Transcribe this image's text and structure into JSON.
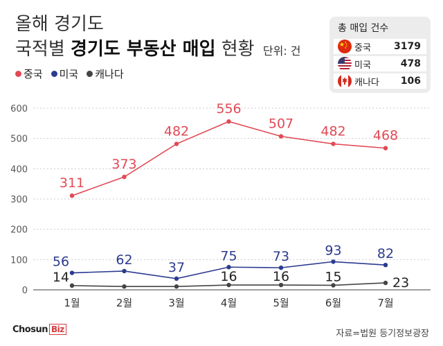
{
  "header": {
    "title_line1": "올해 경기도",
    "title_prefix": "국적별",
    "title_bold": "경기도 부동산 매입",
    "title_suffix": "현황",
    "unit": "단위: 건"
  },
  "summary": {
    "title": "총 매입 건수",
    "rows": [
      {
        "name": "중국",
        "value": "3179",
        "flag": "china-flag-icon"
      },
      {
        "name": "미국",
        "value": "478",
        "flag": "usa-flag-icon"
      },
      {
        "name": "캐나다",
        "value": "106",
        "flag": "canada-flag-icon"
      }
    ]
  },
  "footer": {
    "logo_main": "ChosunBiz",
    "logo_accent": "Biz",
    "logo_text": "Chosun",
    "source": "자료=법원 등기정보광장"
  },
  "colors": {
    "china": "#e04a55",
    "usa": "#2b3a8f",
    "canada": "#444444",
    "grid": "#cccccc",
    "axis": "#666666"
  },
  "chart_data": {
    "type": "line",
    "categories": [
      "1월",
      "2월",
      "3월",
      "4월",
      "5월",
      "6월",
      "7월"
    ],
    "series": [
      {
        "name": "중국",
        "values": [
          311,
          373,
          482,
          556,
          507,
          482,
          468
        ],
        "color": "#e04a55"
      },
      {
        "name": "미국",
        "values": [
          56,
          62,
          37,
          75,
          73,
          93,
          82
        ],
        "color": "#2b3a8f"
      },
      {
        "name": "캐나다",
        "values": [
          14,
          11,
          11,
          16,
          16,
          15,
          23
        ],
        "color": "#444444"
      }
    ],
    "data_labels": {
      "중국": [
        "311",
        "373",
        "482",
        "556",
        "507",
        "482",
        "468"
      ],
      "미국": [
        "56",
        "62",
        "37",
        "75",
        "73",
        "93",
        "82"
      ],
      "캐나다": [
        "14",
        "",
        "",
        "16",
        "16",
        "15",
        "23"
      ]
    },
    "ylim": [
      0,
      600
    ],
    "yticks": [
      0,
      100,
      200,
      300,
      400,
      500,
      600
    ],
    "grid": true,
    "legend": "top-left",
    "xlabel": "",
    "ylabel": ""
  }
}
